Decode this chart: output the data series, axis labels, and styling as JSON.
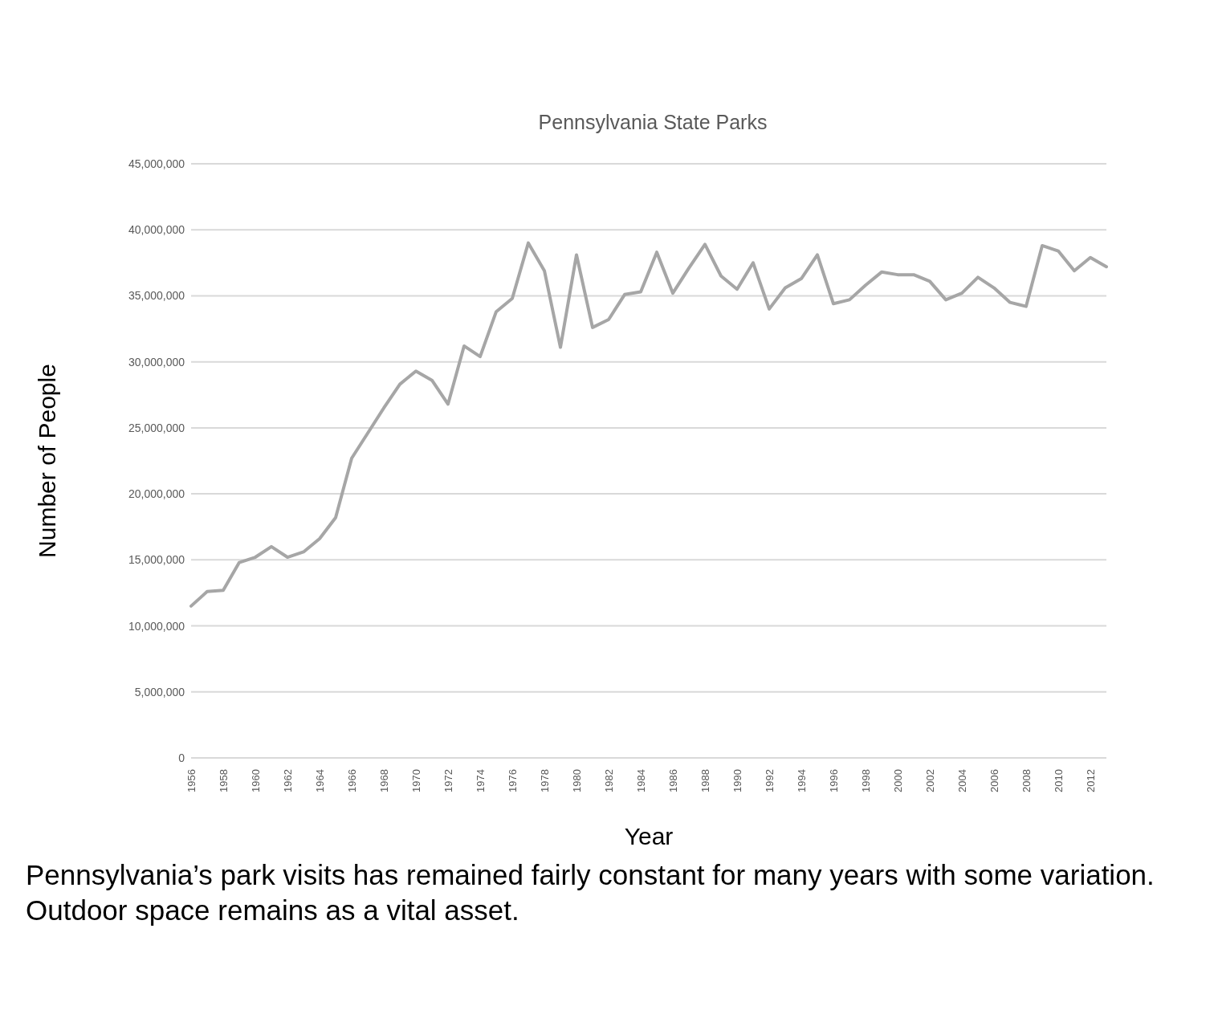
{
  "chart_data": {
    "type": "line",
    "title": "Pennsylvania State Parks",
    "xlabel": "Year",
    "ylabel": "Number of People",
    "categories": [
      "1956",
      null,
      "1958",
      null,
      "1960",
      null,
      "1962",
      null,
      "1964",
      null,
      "1966",
      null,
      "1968",
      null,
      "1970",
      null,
      "1972",
      null,
      "1974",
      null,
      "1976",
      null,
      "1978",
      null,
      "1980",
      null,
      "1982",
      null,
      "1984",
      null,
      "1986",
      null,
      "1988",
      null,
      "1990",
      null,
      "1992",
      null,
      "1994",
      null,
      "1996",
      null,
      "1998",
      null,
      "2000",
      null,
      "2002",
      null,
      "2004",
      null,
      "2006",
      null,
      "2008",
      null,
      "2010",
      null,
      "2012",
      null
    ],
    "series": [
      {
        "color": "#a6a6a6",
        "values": [
          11500000,
          12600000,
          12700000,
          14800000,
          15200000,
          16000000,
          15200000,
          15600000,
          16600000,
          18200000,
          22700000,
          24600000,
          26500000,
          28300000,
          29300000,
          28600000,
          26800000,
          31200000,
          30400000,
          33800000,
          34800000,
          39000000,
          36900000,
          31100000,
          38100000,
          32600000,
          33200000,
          35100000,
          35300000,
          38300000,
          35200000,
          37100000,
          38900000,
          36500000,
          35500000,
          37500000,
          34000000,
          35600000,
          36300000,
          38100000,
          34400000,
          34700000,
          35800000,
          36800000,
          36600000,
          36600000,
          36100000,
          34700000,
          35200000,
          36400000,
          35600000,
          34500000,
          34200000,
          38800000,
          38400000,
          36900000,
          37900000,
          37200000
        ]
      }
    ],
    "ylim": [
      0,
      45000000
    ],
    "yticks": [
      {
        "value": 0,
        "label": "0"
      },
      {
        "value": 5000000,
        "label": "5,000,000"
      },
      {
        "value": 10000000,
        "label": "10,000,000"
      },
      {
        "value": 15000000,
        "label": "15,000,000"
      },
      {
        "value": 20000000,
        "label": "20,000,000"
      },
      {
        "value": 25000000,
        "label": "25,000,000"
      },
      {
        "value": 30000000,
        "label": "30,000,000"
      },
      {
        "value": 35000000,
        "label": "35,000,000"
      },
      {
        "value": 40000000,
        "label": "40,000,000"
      },
      {
        "value": 45000000,
        "label": "45,000,000"
      }
    ],
    "grid": "y",
    "marker": "none",
    "line_style": "solid",
    "annotations": [
      "Pennsylvania’s park visits has remained fairly constant for many years with some variation. Outdoor space remains as a vital asset."
    ]
  }
}
